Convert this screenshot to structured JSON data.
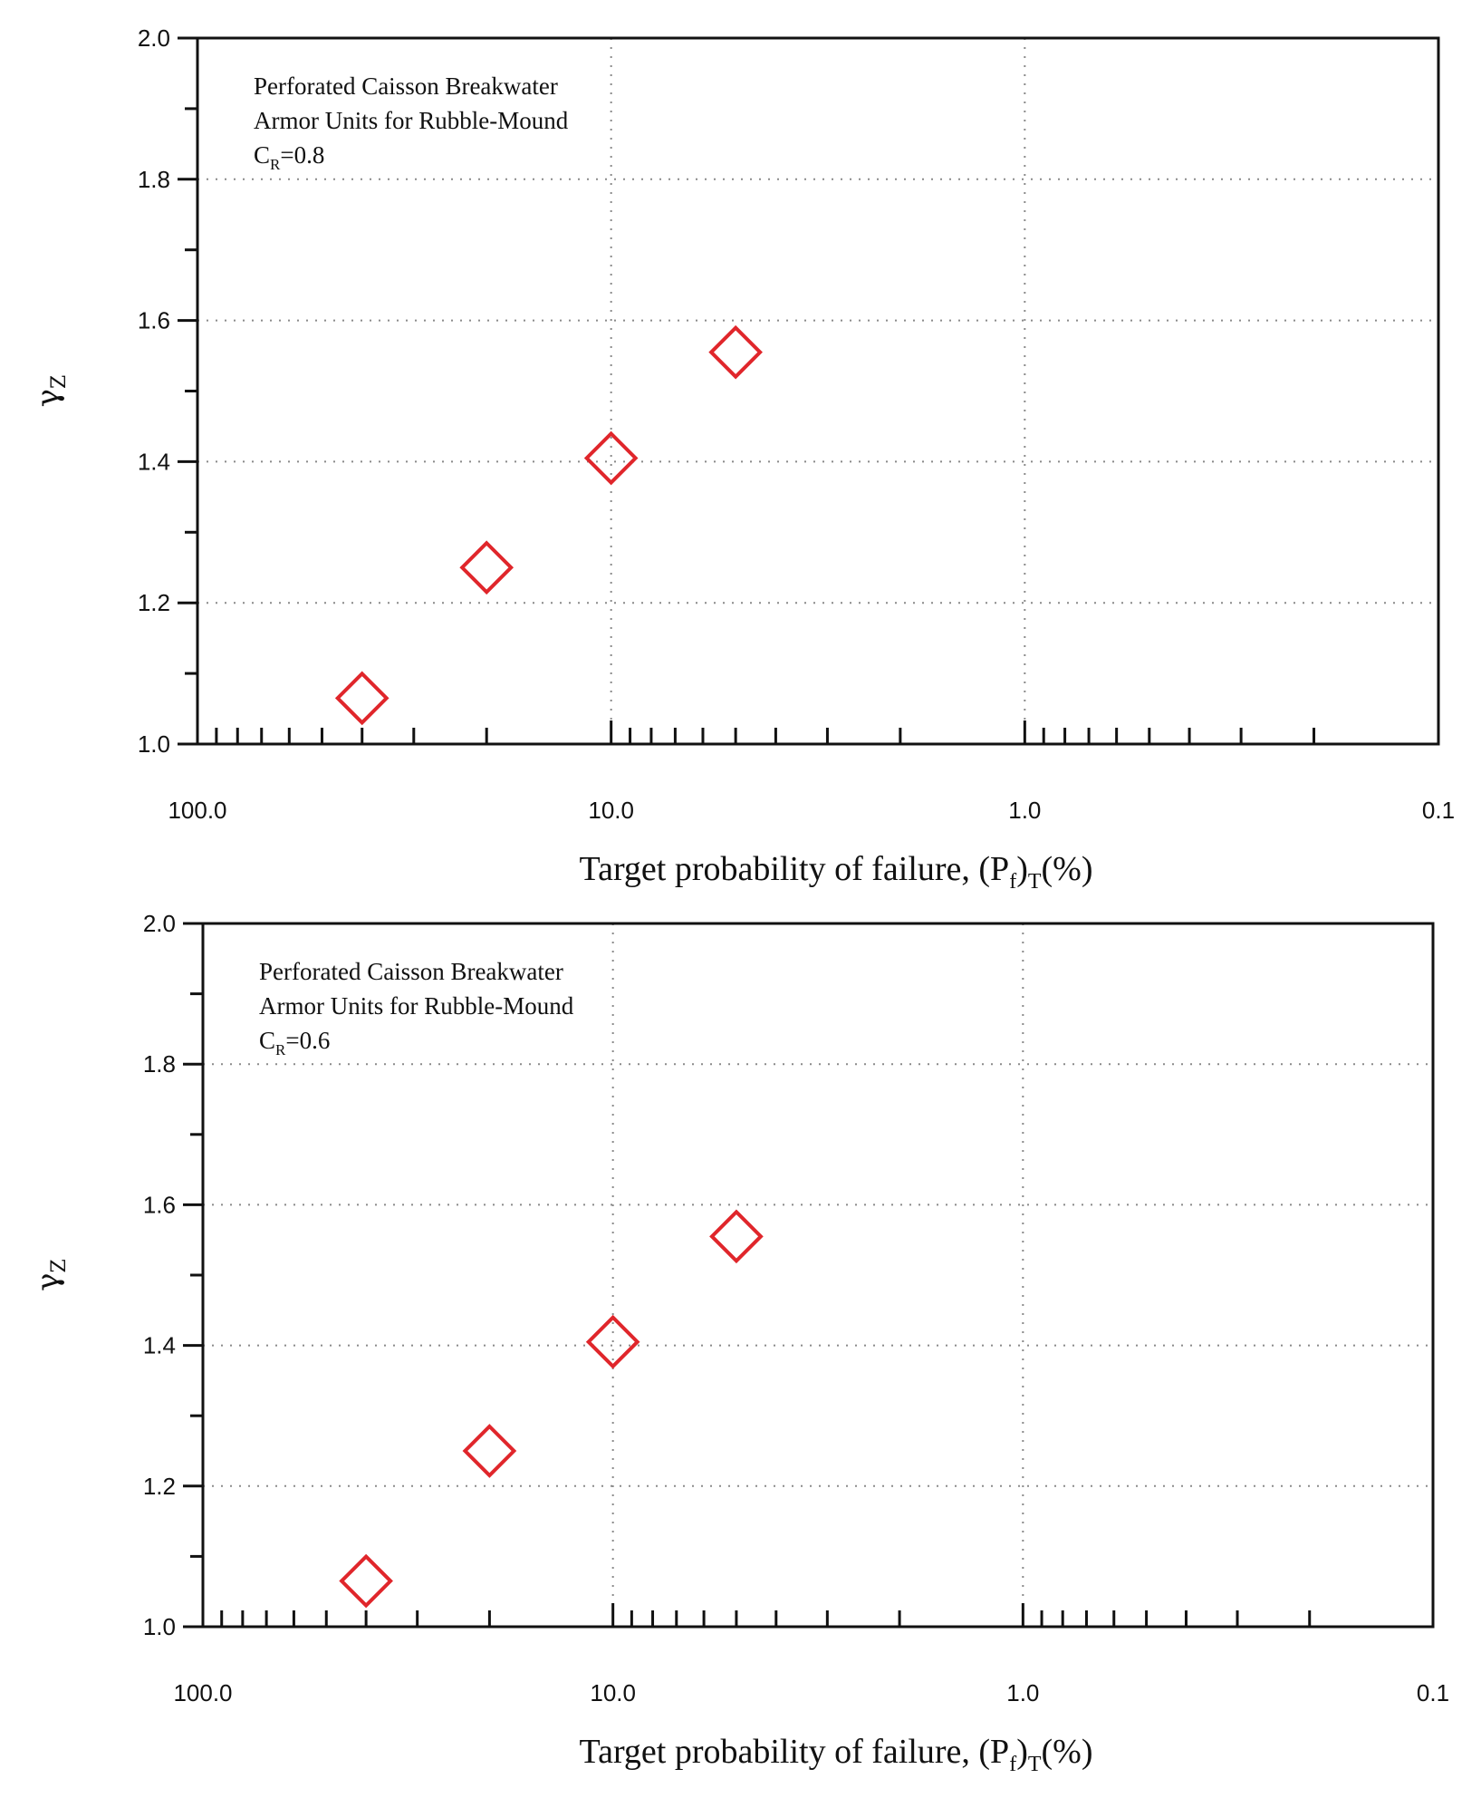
{
  "chart_data": [
    {
      "type": "scatter",
      "annotation": [
        "Perforated Caisson Breakwater",
        "Armor Units for Rubble-Mound"
      ],
      "annotation_cr": {
        "main": "C",
        "sub": "R",
        "rest": "=0.8"
      },
      "xlabel": {
        "main": "Target probability of failure, (P",
        "sub1": "f",
        "mid": ")",
        "sub2": "T",
        "end": "(%)"
      },
      "ylabel": {
        "main": "γ",
        "sub": "Z"
      },
      "x_scale": "log-reversed",
      "xlim": [
        100.0,
        0.1
      ],
      "ylim": [
        1.0,
        2.0
      ],
      "x_ticks": [
        "100.0",
        "10.0",
        "1.0",
        "0.1"
      ],
      "y_ticks": [
        "1.0",
        "1.2",
        "1.4",
        "1.6",
        "1.8",
        "2.0"
      ],
      "grid": "dotted",
      "marker": "open-diamond",
      "color": "#e0262b",
      "x": [
        40,
        20,
        10,
        5
      ],
      "y": [
        1.065,
        1.25,
        1.405,
        1.555
      ]
    },
    {
      "type": "scatter",
      "annotation": [
        "Perforated Caisson Breakwater",
        "Armor Units for Rubble-Mound"
      ],
      "annotation_cr": {
        "main": "C",
        "sub": "R",
        "rest": "=0.6"
      },
      "xlabel": {
        "main": "Target probability of failure, (P",
        "sub1": "f",
        "mid": ")",
        "sub2": "T",
        "end": "(%)"
      },
      "ylabel": {
        "main": "γ",
        "sub": "Z"
      },
      "x_scale": "log-reversed",
      "xlim": [
        100.0,
        0.1
      ],
      "ylim": [
        1.0,
        2.0
      ],
      "x_ticks": [
        "100.0",
        "10.0",
        "1.0",
        "0.1"
      ],
      "y_ticks": [
        "1.0",
        "1.2",
        "1.4",
        "1.6",
        "1.8",
        "2.0"
      ],
      "grid": "dotted",
      "marker": "open-diamond",
      "color": "#e0262b",
      "x": [
        40,
        20,
        10,
        5
      ],
      "y": [
        1.065,
        1.25,
        1.405,
        1.555
      ]
    }
  ]
}
